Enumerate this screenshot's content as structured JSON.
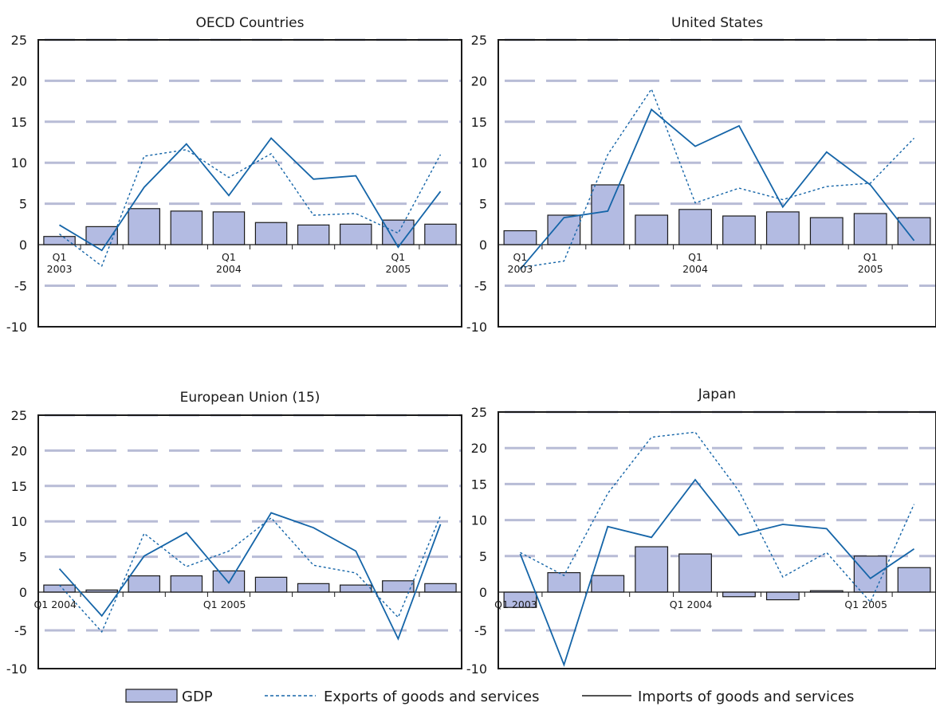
{
  "colors": {
    "bar_fill": "#b3bbe2",
    "bar_edge": "#1a1a1a",
    "line": "#1565a8",
    "grid": "#b8bcd6",
    "frame": "#1a1a1a"
  },
  "legend": {
    "position": "bottom",
    "gdp": "GDP",
    "exports": "Exports of goods and services",
    "imports": "Imports of goods and services"
  },
  "chart_data": [
    {
      "type": "bar",
      "title": "OECD Countries",
      "ylim": [
        -10,
        25
      ],
      "yticks": [
        "25",
        "20",
        "15",
        "10",
        "5",
        "0",
        "-5",
        "-10"
      ],
      "grid": true,
      "xlabels": [
        {
          "at": 0,
          "lines": [
            "Q1",
            "2003"
          ]
        },
        {
          "at": 4,
          "lines": [
            "Q1",
            "2004"
          ]
        },
        {
          "at": 8,
          "lines": [
            "Q1",
            "2005"
          ]
        }
      ],
      "series": [
        {
          "name": "GDP",
          "kind": "bar",
          "values": [
            1.0,
            2.2,
            4.4,
            4.1,
            4.0,
            2.7,
            2.4,
            2.5,
            3.0,
            2.5
          ]
        },
        {
          "name": "Exports of goods and services",
          "kind": "line-dashed",
          "values": [
            1.3,
            -2.6,
            10.8,
            11.6,
            8.2,
            11.1,
            3.6,
            3.8,
            1.4,
            11.0
          ]
        },
        {
          "name": "Imports of goods and services",
          "kind": "line",
          "values": [
            2.4,
            -0.7,
            7.0,
            12.3,
            6.0,
            13.0,
            8.0,
            8.4,
            -0.3,
            6.5
          ]
        }
      ]
    },
    {
      "type": "bar",
      "title": "United States",
      "ylim": [
        -10,
        25
      ],
      "yticks": [
        "25",
        "20",
        "15",
        "10",
        "5",
        "0",
        "-5",
        "-10"
      ],
      "grid": true,
      "xlabels": [
        {
          "at": 0,
          "lines": [
            "Q1",
            "2003"
          ]
        },
        {
          "at": 4,
          "lines": [
            "Q1",
            "2004"
          ]
        },
        {
          "at": 8,
          "lines": [
            "Q1",
            "2005"
          ]
        }
      ],
      "series": [
        {
          "name": "GDP",
          "kind": "bar",
          "values": [
            1.7,
            3.6,
            7.3,
            3.6,
            4.3,
            3.5,
            4.0,
            3.3,
            3.8,
            3.3
          ]
        },
        {
          "name": "Exports of goods and services",
          "kind": "line-dashed",
          "values": [
            -2.8,
            -2.0,
            11.0,
            19.0,
            5.1,
            6.9,
            5.5,
            7.1,
            7.5,
            13.0
          ]
        },
        {
          "name": "Imports of goods and services",
          "kind": "line",
          "values": [
            -3.0,
            3.3,
            4.1,
            16.5,
            12.0,
            14.5,
            4.6,
            11.3,
            7.3,
            0.5
          ]
        }
      ]
    },
    {
      "type": "bar",
      "title": "European Union (15)",
      "ylim": [
        -10,
        25
      ],
      "yticks": [
        "25",
        "20",
        "15",
        "10",
        "5",
        "0",
        "-5",
        "-10"
      ],
      "grid": true,
      "xlabels": [
        {
          "at": 0,
          "lines": [
            "Q1 2004"
          ]
        },
        {
          "at": 4,
          "lines": [
            "Q1 2005"
          ]
        }
      ],
      "series": [
        {
          "name": "GDP",
          "kind": "bar",
          "values": [
            1.0,
            0.3,
            2.3,
            2.3,
            3.0,
            2.1,
            1.2,
            1.0,
            1.6,
            1.2
          ]
        },
        {
          "name": "Exports of goods and services",
          "kind": "line-dashed",
          "values": [
            1.0,
            -5.2,
            8.3,
            3.6,
            5.8,
            10.5,
            3.8,
            2.7,
            -3.3,
            10.8
          ]
        },
        {
          "name": "Imports of goods and services",
          "kind": "line",
          "values": [
            3.3,
            -3.1,
            5.1,
            8.4,
            1.3,
            11.2,
            9.1,
            5.8,
            -6.1,
            9.6
          ]
        }
      ]
    },
    {
      "type": "bar",
      "title": "Japan",
      "ylim": [
        -10,
        25
      ],
      "yticks": [
        "25",
        "20",
        "15",
        "10",
        "5",
        "0",
        "-5",
        "-10"
      ],
      "grid": true,
      "xlabels": [
        {
          "at": 0,
          "lines": [
            "Q1 2003"
          ]
        },
        {
          "at": 4,
          "lines": [
            "Q1 2004"
          ]
        },
        {
          "at": 8,
          "lines": [
            "Q1 2005"
          ]
        }
      ],
      "series": [
        {
          "name": "GDP",
          "kind": "bar",
          "values": [
            -2.0,
            2.7,
            2.3,
            6.3,
            5.3,
            -0.6,
            -1.0,
            0.2,
            5.0,
            3.4
          ]
        },
        {
          "name": "Exports of goods and services",
          "kind": "line-dashed",
          "values": [
            5.5,
            2.3,
            13.7,
            21.5,
            22.2,
            14.0,
            2.1,
            5.5,
            -1.3,
            12.2
          ]
        },
        {
          "name": "Imports of goods and services",
          "kind": "line",
          "values": [
            5.3,
            -9.5,
            9.1,
            7.6,
            15.6,
            7.9,
            9.4,
            8.8,
            1.9,
            6.0
          ]
        }
      ]
    }
  ]
}
